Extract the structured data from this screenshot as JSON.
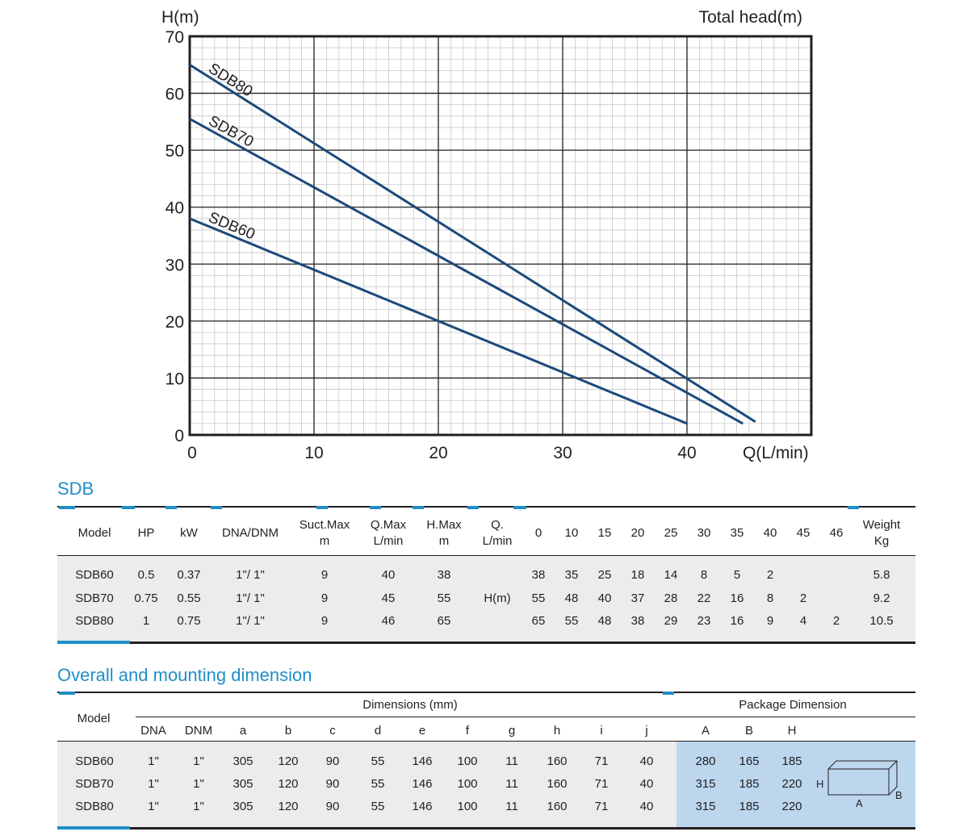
{
  "chart_data": {
    "type": "line",
    "y_axis_title": "H(m)",
    "right_title": "Total head(m)",
    "x_axis_title": "Q(L/min)",
    "xlim": [
      0,
      50
    ],
    "ylim": [
      0,
      70
    ],
    "x_ticks": [
      "0",
      "10",
      "20",
      "30",
      "40"
    ],
    "y_ticks": [
      "0",
      "10",
      "20",
      "30",
      "40",
      "50",
      "60",
      "70"
    ],
    "grid": true,
    "series": [
      {
        "name": "SDB80",
        "color": "#1b4a7a",
        "x": [
          0,
          45.5
        ],
        "y": [
          65,
          2.3
        ]
      },
      {
        "name": "SDB70",
        "color": "#1b4a7a",
        "x": [
          0,
          44.5
        ],
        "y": [
          55.5,
          2
        ]
      },
      {
        "name": "SDB60",
        "color": "#1b4a7a",
        "x": [
          0,
          40
        ],
        "y": [
          38,
          2
        ]
      }
    ]
  },
  "sdb": {
    "title": "SDB",
    "headers": [
      [
        "Model"
      ],
      [
        "HP"
      ],
      [
        "kW"
      ],
      [
        "DNA/DNM"
      ],
      [
        "Suct.Max",
        "m"
      ],
      [
        "Q.Max",
        "L/min"
      ],
      [
        "H.Max",
        "m"
      ],
      [
        "Q.",
        "L/min"
      ],
      [
        "0"
      ],
      [
        "10"
      ],
      [
        "15"
      ],
      [
        "20"
      ],
      [
        "25"
      ],
      [
        "30"
      ],
      [
        "35"
      ],
      [
        "40"
      ],
      [
        "45"
      ],
      [
        "46"
      ],
      [
        "Weight",
        "Kg"
      ]
    ],
    "h_label": "H(m)",
    "rows": [
      [
        "SDB60",
        "0.5",
        "0.37",
        "1\"/ 1\"",
        "9",
        "40",
        "38",
        "",
        "38",
        "35",
        "25",
        "18",
        "14",
        "8",
        "5",
        "2",
        "",
        "",
        "5.8"
      ],
      [
        "SDB70",
        "0.75",
        "0.55",
        "1\"/ 1\"",
        "9",
        "45",
        "55",
        "H(m)",
        "55",
        "48",
        "40",
        "37",
        "28",
        "22",
        "16",
        "8",
        "2",
        "",
        "9.2"
      ],
      [
        "SDB80",
        "1",
        "0.75",
        "1\"/ 1\"",
        "9",
        "46",
        "65",
        "",
        "65",
        "55",
        "48",
        "38",
        "29",
        "23",
        "16",
        "9",
        "4",
        "2",
        "10.5"
      ]
    ]
  },
  "dims": {
    "title": "Overall and mounting dimension",
    "model_header": "Model",
    "group_dims": "Dimensions (mm)",
    "group_pkg": "Package Dimension",
    "headers": [
      "DNA",
      "DNM",
      "a",
      "b",
      "c",
      "d",
      "e",
      "f",
      "g",
      "h",
      "i",
      "j",
      "A",
      "B",
      "H"
    ],
    "rows": [
      [
        "SDB60",
        "1\"",
        "1\"",
        "305",
        "120",
        "90",
        "55",
        "146",
        "100",
        "11",
        "160",
        "71",
        "40",
        "280",
        "165",
        "185"
      ],
      [
        "SDB70",
        "1\"",
        "1\"",
        "305",
        "120",
        "90",
        "55",
        "146",
        "100",
        "11",
        "160",
        "71",
        "40",
        "315",
        "185",
        "220"
      ],
      [
        "SDB80",
        "1\"",
        "1\"",
        "305",
        "120",
        "90",
        "55",
        "146",
        "100",
        "11",
        "160",
        "71",
        "40",
        "315",
        "185",
        "220"
      ]
    ],
    "box_labels": {
      "h": "H",
      "a": "A",
      "b": "B"
    }
  }
}
